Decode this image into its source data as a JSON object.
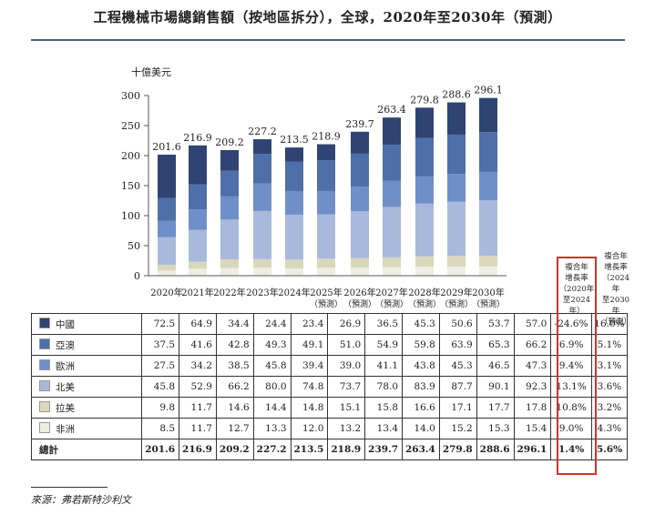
{
  "title": "工程機械市場總銷售額（按地區拆分），全球，2020年至2030年（預測）",
  "source": "來源：弗若斯特沙利文",
  "chart_data": {
    "type": "bar",
    "stacked": true,
    "unit_label": "十億美元",
    "ylim": [
      0,
      300
    ],
    "yticks": [
      0,
      50,
      100,
      150,
      200,
      250,
      300
    ],
    "categories": [
      [
        "2020年"
      ],
      [
        "2021年"
      ],
      [
        "2022年"
      ],
      [
        "2023年"
      ],
      [
        "2024年"
      ],
      [
        "2025年",
        "（預測）"
      ],
      [
        "2026年",
        "（預測）"
      ],
      [
        "2027年",
        "（預測）"
      ],
      [
        "2028年",
        "（預測）"
      ],
      [
        "2029年",
        "（預測）"
      ],
      [
        "2030年",
        "（預測）"
      ]
    ],
    "totals": [
      "201.6",
      "216.9",
      "209.2",
      "227.2",
      "213.5",
      "218.9",
      "239.7",
      "263.4",
      "279.8",
      "288.6",
      "296.1"
    ],
    "series": [
      {
        "name": "非洲",
        "color": "#efeee3",
        "values": [
          8.5,
          11.7,
          12.7,
          13.3,
          12.0,
          13.2,
          13.4,
          14.0,
          15.2,
          15.3,
          15.4
        ]
      },
      {
        "name": "拉美",
        "color": "#d9d7bc",
        "values": [
          9.8,
          11.7,
          14.6,
          14.4,
          14.8,
          15.1,
          15.8,
          16.6,
          17.1,
          17.7,
          17.8
        ]
      },
      {
        "name": "北美",
        "color": "#a9b9dc",
        "values": [
          45.8,
          52.9,
          66.2,
          80.0,
          74.8,
          73.7,
          78.0,
          83.9,
          87.7,
          90.1,
          92.3
        ]
      },
      {
        "name": "歐洲",
        "color": "#6f8fc9",
        "values": [
          27.5,
          34.2,
          38.5,
          45.8,
          39.4,
          39.0,
          41.1,
          43.8,
          45.3,
          46.5,
          47.3
        ]
      },
      {
        "name": "亞澳",
        "color": "#4f6fa8",
        "values": [
          37.5,
          41.6,
          42.8,
          49.3,
          49.1,
          51.0,
          54.9,
          59.8,
          63.9,
          65.3,
          66.2
        ]
      },
      {
        "name": "中國",
        "color": "#2f4472",
        "values": [
          72.5,
          64.9,
          34.4,
          24.4,
          23.4,
          26.9,
          36.5,
          45.3,
          50.6,
          53.7,
          57.0
        ]
      }
    ],
    "cagr_header_1": [
      "複合年",
      "增長率",
      "（2020年",
      "至2024年）"
    ],
    "cagr_header_2": [
      "複合年",
      "增長率",
      "（2024年",
      "至2030年",
      "（預測）"
    ],
    "table_rows": [
      {
        "label": "中國",
        "color": "#2f4472",
        "cells": [
          "72.5",
          "64.9",
          "34.4",
          "24.4",
          "23.4",
          "26.9",
          "36.5",
          "45.3",
          "50.6",
          "53.7",
          "57.0"
        ],
        "cagr1": "-24.6%",
        "cagr2": "16.0%"
      },
      {
        "label": "亞澳",
        "color": "#4f6fa8",
        "cells": [
          "37.5",
          "41.6",
          "42.8",
          "49.3",
          "49.1",
          "51.0",
          "54.9",
          "59.8",
          "63.9",
          "65.3",
          "66.2"
        ],
        "cagr1": "6.9%",
        "cagr2": "5.1%"
      },
      {
        "label": "歐洲",
        "color": "#6f8fc9",
        "cells": [
          "27.5",
          "34.2",
          "38.5",
          "45.8",
          "39.4",
          "39.0",
          "41.1",
          "43.8",
          "45.3",
          "46.5",
          "47.3"
        ],
        "cagr1": "9.4%",
        "cagr2": "3.1%"
      },
      {
        "label": "北美",
        "color": "#a9b9dc",
        "cells": [
          "45.8",
          "52.9",
          "66.2",
          "80.0",
          "74.8",
          "73.7",
          "78.0",
          "83.9",
          "87.7",
          "90.1",
          "92.3"
        ],
        "cagr1": "13.1%",
        "cagr2": "3.6%"
      },
      {
        "label": "拉美",
        "color": "#d9d7bc",
        "cells": [
          "9.8",
          "11.7",
          "14.6",
          "14.4",
          "14.8",
          "15.1",
          "15.8",
          "16.6",
          "17.1",
          "17.7",
          "17.8"
        ],
        "cagr1": "10.8%",
        "cagr2": "3.2%"
      },
      {
        "label": "非洲",
        "color": "#efeee3",
        "cells": [
          "8.5",
          "11.7",
          "12.7",
          "13.3",
          "12.0",
          "13.2",
          "13.4",
          "14.0",
          "15.2",
          "15.3",
          "15.4"
        ],
        "cagr1": "9.0%",
        "cagr2": "4.3%"
      },
      {
        "label": "總計",
        "color": "",
        "total": true,
        "cells": [
          "201.6",
          "216.9",
          "209.2",
          "227.2",
          "213.5",
          "218.9",
          "239.7",
          "263.4",
          "279.8",
          "288.6",
          "296.1"
        ],
        "cagr1": "1.4%",
        "cagr2": "5.6%"
      }
    ]
  }
}
